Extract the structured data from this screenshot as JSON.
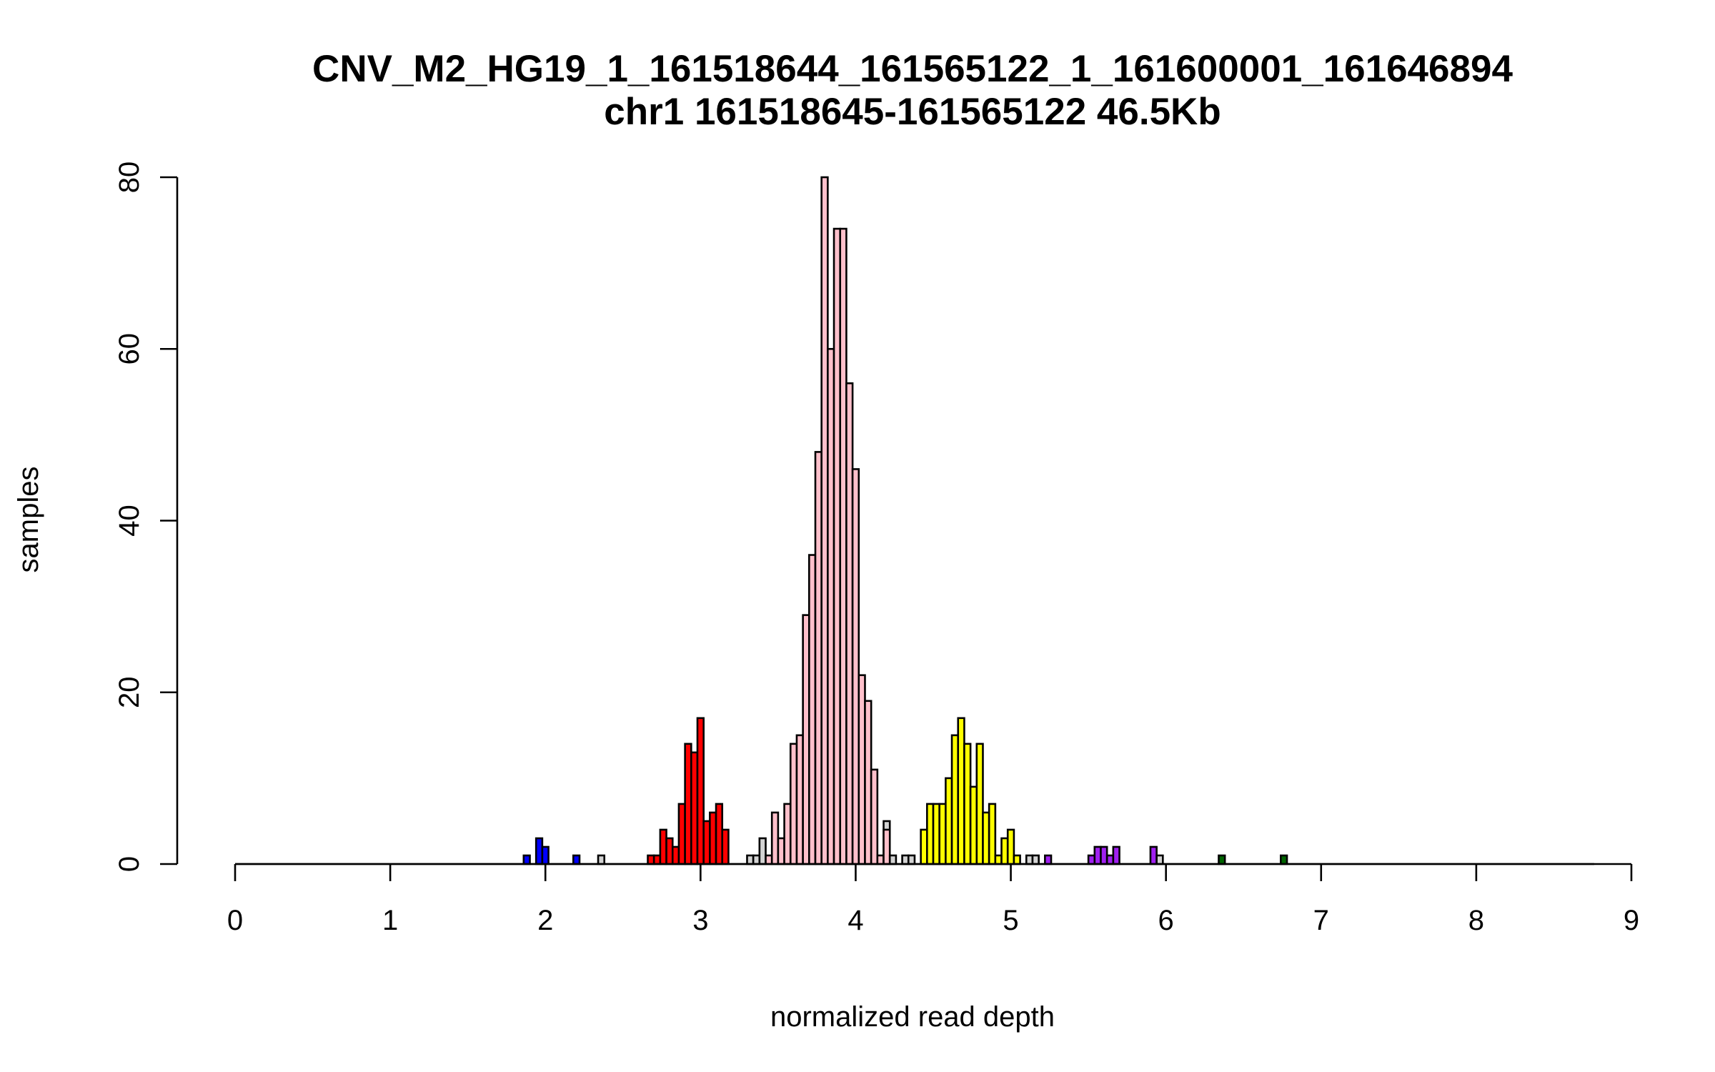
{
  "chart_data": {
    "type": "bar",
    "title": "CNV_M2_HG19_1_161518644_161565122_1_161600001_161646894",
    "subtitle": "chr1 161518645-161565122 46.5Kb",
    "xlabel": "normalized read depth",
    "ylabel": "samples",
    "xlim": [
      0,
      9
    ],
    "ylim": [
      0,
      80
    ],
    "x_ticks": [
      "0",
      "1",
      "2",
      "3",
      "4",
      "5",
      "6",
      "7",
      "8",
      "9"
    ],
    "y_ticks": [
      "0",
      "20",
      "40",
      "60",
      "80"
    ],
    "grid": false,
    "legend": "none",
    "bin_width": 0.04,
    "baseline_range": [
      0,
      8.76
    ],
    "colors": {
      "blue": "#0000ff",
      "red": "#ff0000",
      "lightgray": "#d3d3d3",
      "pink": "#ffc0cb",
      "yellow": "#ffff00",
      "purple": "#a020f0",
      "darkgreen": "#006400"
    },
    "bins": [
      {
        "x": 1.86,
        "count": 1,
        "color": "blue"
      },
      {
        "x": 1.94,
        "count": 3,
        "color": "blue"
      },
      {
        "x": 1.98,
        "count": 2,
        "color": "blue"
      },
      {
        "x": 2.18,
        "count": 1,
        "color": "blue"
      },
      {
        "x": 2.34,
        "count": 1,
        "color": "lightgray"
      },
      {
        "x": 2.66,
        "count": 1,
        "color": "red"
      },
      {
        "x": 2.7,
        "count": 1,
        "color": "red"
      },
      {
        "x": 2.74,
        "count": 4,
        "color": "red"
      },
      {
        "x": 2.78,
        "count": 3,
        "color": "red"
      },
      {
        "x": 2.82,
        "count": 2,
        "color": "red"
      },
      {
        "x": 2.86,
        "count": 7,
        "color": "red"
      },
      {
        "x": 2.9,
        "count": 14,
        "color": "red"
      },
      {
        "x": 2.94,
        "count": 13,
        "color": "red"
      },
      {
        "x": 2.98,
        "count": 17,
        "color": "red"
      },
      {
        "x": 3.02,
        "count": 5,
        "color": "red"
      },
      {
        "x": 3.06,
        "count": 6,
        "color": "red"
      },
      {
        "x": 3.1,
        "count": 7,
        "color": "red"
      },
      {
        "x": 3.14,
        "count": 4,
        "color": "red"
      },
      {
        "x": 3.3,
        "count": 1,
        "color": "lightgray"
      },
      {
        "x": 3.34,
        "count": 1,
        "color": "lightgray"
      },
      {
        "x": 3.38,
        "count": 3,
        "color": "lightgray"
      },
      {
        "x": 3.42,
        "count": 1,
        "color": "pink"
      },
      {
        "x": 3.46,
        "count": 6,
        "color": "pink"
      },
      {
        "x": 3.5,
        "count": 3,
        "color": "pink"
      },
      {
        "x": 3.54,
        "count": 7,
        "color": "pink"
      },
      {
        "x": 3.58,
        "count": 14,
        "color": "pink"
      },
      {
        "x": 3.62,
        "count": 15,
        "color": "pink"
      },
      {
        "x": 3.66,
        "count": 29,
        "color": "pink"
      },
      {
        "x": 3.7,
        "count": 36,
        "color": "pink"
      },
      {
        "x": 3.74,
        "count": 48,
        "color": "pink"
      },
      {
        "x": 3.78,
        "count": 80,
        "color": "pink"
      },
      {
        "x": 3.82,
        "count": 60,
        "color": "pink"
      },
      {
        "x": 3.86,
        "count": 74,
        "color": "pink"
      },
      {
        "x": 3.9,
        "count": 74,
        "color": "pink"
      },
      {
        "x": 3.94,
        "count": 56,
        "color": "pink"
      },
      {
        "x": 3.98,
        "count": 46,
        "color": "pink"
      },
      {
        "x": 4.02,
        "count": 22,
        "color": "pink"
      },
      {
        "x": 4.06,
        "count": 19,
        "color": "pink"
      },
      {
        "x": 4.1,
        "count": 11,
        "color": "pink"
      },
      {
        "x": 4.14,
        "count": 1,
        "color": "pink"
      },
      {
        "x": 4.18,
        "count": 5,
        "color": "lightgray"
      },
      {
        "x": 4.18,
        "count": 4,
        "color": "pink"
      },
      {
        "x": 4.22,
        "count": 1,
        "color": "lightgray"
      },
      {
        "x": 4.3,
        "count": 1,
        "color": "lightgray"
      },
      {
        "x": 4.34,
        "count": 1,
        "color": "lightgray"
      },
      {
        "x": 4.42,
        "count": 4,
        "color": "yellow"
      },
      {
        "x": 4.46,
        "count": 7,
        "color": "yellow"
      },
      {
        "x": 4.5,
        "count": 7,
        "color": "yellow"
      },
      {
        "x": 4.54,
        "count": 7,
        "color": "yellow"
      },
      {
        "x": 4.58,
        "count": 10,
        "color": "yellow"
      },
      {
        "x": 4.62,
        "count": 15,
        "color": "yellow"
      },
      {
        "x": 4.66,
        "count": 17,
        "color": "yellow"
      },
      {
        "x": 4.7,
        "count": 14,
        "color": "yellow"
      },
      {
        "x": 4.74,
        "count": 9,
        "color": "yellow"
      },
      {
        "x": 4.78,
        "count": 14,
        "color": "yellow"
      },
      {
        "x": 4.82,
        "count": 6,
        "color": "yellow"
      },
      {
        "x": 4.86,
        "count": 7,
        "color": "yellow"
      },
      {
        "x": 4.9,
        "count": 1,
        "color": "yellow"
      },
      {
        "x": 4.94,
        "count": 3,
        "color": "yellow"
      },
      {
        "x": 4.98,
        "count": 4,
        "color": "yellow"
      },
      {
        "x": 5.02,
        "count": 1,
        "color": "yellow"
      },
      {
        "x": 5.1,
        "count": 1,
        "color": "lightgray"
      },
      {
        "x": 5.14,
        "count": 1,
        "color": "lightgray"
      },
      {
        "x": 5.22,
        "count": 1,
        "color": "purple"
      },
      {
        "x": 5.5,
        "count": 1,
        "color": "purple"
      },
      {
        "x": 5.54,
        "count": 2,
        "color": "purple"
      },
      {
        "x": 5.58,
        "count": 2,
        "color": "purple"
      },
      {
        "x": 5.62,
        "count": 1,
        "color": "purple"
      },
      {
        "x": 5.66,
        "count": 2,
        "color": "purple"
      },
      {
        "x": 5.9,
        "count": 2,
        "color": "purple"
      },
      {
        "x": 5.94,
        "count": 1,
        "color": "lightgray"
      },
      {
        "x": 6.34,
        "count": 1,
        "color": "darkgreen"
      },
      {
        "x": 6.74,
        "count": 1,
        "color": "darkgreen"
      }
    ]
  }
}
